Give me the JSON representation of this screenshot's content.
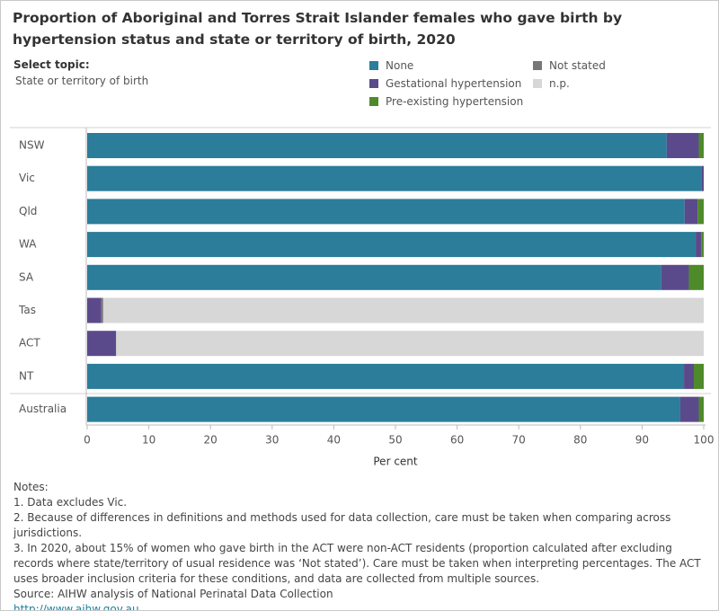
{
  "chart_data": {
    "type": "bar",
    "title": "Proportion of Aboriginal and Torres Strait Islander females who gave birth by hypertension status and state or territory of birth, 2020",
    "categories": [
      "NSW",
      "Vic",
      "Qld",
      "WA",
      "SA",
      "Tas",
      "ACT",
      "NT",
      "Australia"
    ],
    "series": [
      {
        "name": "None",
        "color": "#2b7d99",
        "values": [
          94.0,
          99.7,
          96.9,
          98.7,
          93.1,
          null,
          null,
          96.8,
          96.2
        ]
      },
      {
        "name": "Gestational hypertension",
        "color": "#5b4a8b",
        "values": [
          5.2,
          0.3,
          2.1,
          0.9,
          4.5,
          2.3,
          4.7,
          1.6,
          3.0
        ]
      },
      {
        "name": "Pre-existing hypertension",
        "color": "#4e8a2a",
        "values": [
          0.8,
          null,
          1.0,
          0.4,
          2.4,
          null,
          null,
          1.6,
          0.8
        ]
      },
      {
        "name": "Not stated",
        "color": "#777777",
        "values": [
          null,
          null,
          null,
          null,
          null,
          0.3,
          null,
          null,
          null
        ]
      },
      {
        "name": "n.p.",
        "color": "#d7d7d7",
        "values": [
          null,
          null,
          null,
          null,
          null,
          97.4,
          95.3,
          null,
          null
        ]
      }
    ],
    "xlim": [
      0,
      100
    ],
    "xticks": [
      0,
      10,
      20,
      30,
      40,
      50,
      60,
      70,
      80,
      90,
      100
    ],
    "xlabel": "Per cent"
  },
  "select_topic": {
    "label": "Select topic:",
    "value": "State or territory of birth"
  },
  "notes": {
    "heading": "Notes:",
    "items": [
      "1. Data excludes Vic.",
      "2. Because of differences in definitions and methods used for data collection, care must be taken when comparing across jurisdictions.",
      "3. In 2020, about 15% of women who gave birth in the ACT were non-ACT residents (proportion calculated after excluding records where state/territory of usual residence was ‘Not stated’). Care must be taken when interpreting percentages. The ACT uses broader inclusion criteria for these conditions, and data are collected from multiple sources."
    ]
  },
  "source": "Source: AIHW analysis of National Perinatal Data Collection",
  "link": "http://www.aihw.gov.au"
}
